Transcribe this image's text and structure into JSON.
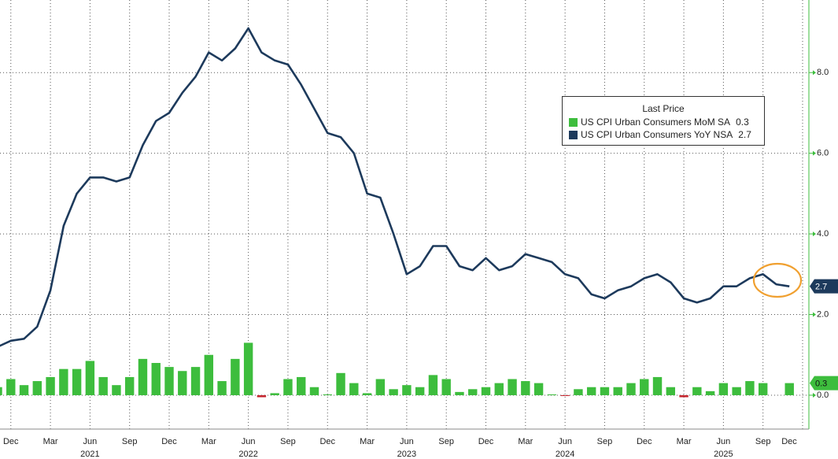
{
  "chart_data": {
    "type": "bar_line",
    "legend_title": "Last Price",
    "x": [
      "2020-11",
      "2020-12",
      "2021-01",
      "2021-02",
      "2021-03",
      "2021-04",
      "2021-05",
      "2021-06",
      "2021-07",
      "2021-08",
      "2021-09",
      "2021-10",
      "2021-11",
      "2021-12",
      "2022-01",
      "2022-02",
      "2022-03",
      "2022-04",
      "2022-05",
      "2022-06",
      "2022-07",
      "2022-08",
      "2022-09",
      "2022-10",
      "2022-11",
      "2022-12",
      "2023-01",
      "2023-02",
      "2023-03",
      "2023-04",
      "2023-05",
      "2023-06",
      "2023-07",
      "2023-08",
      "2023-09",
      "2023-10",
      "2023-11",
      "2023-12",
      "2024-01",
      "2024-02",
      "2024-03",
      "2024-04",
      "2024-05",
      "2024-06",
      "2024-07",
      "2024-08",
      "2024-09",
      "2024-10",
      "2024-11",
      "2024-12",
      "2025-01",
      "2025-02",
      "2025-03",
      "2025-04",
      "2025-05",
      "2025-06",
      "2025-07",
      "2025-08",
      "2025-09",
      "2025-10",
      "2025-11"
    ],
    "series": [
      {
        "name": "US CPI Urban Consumers MoM SA",
        "kind": "bar",
        "color": "#3dbd3d",
        "negative_color": "#c4262e",
        "last_label": "0.3",
        "values": [
          0.2,
          0.4,
          0.25,
          0.35,
          0.45,
          0.65,
          0.65,
          0.85,
          0.45,
          0.25,
          0.45,
          0.9,
          0.8,
          0.7,
          0.6,
          0.7,
          1.0,
          0.35,
          0.9,
          1.3,
          -0.05,
          0.05,
          0.4,
          0.45,
          0.2,
          0.02,
          0.55,
          0.3,
          0.05,
          0.4,
          0.15,
          0.25,
          0.2,
          0.5,
          0.4,
          0.08,
          0.15,
          0.2,
          0.3,
          0.4,
          0.35,
          0.3,
          0.02,
          -0.02,
          0.15,
          0.2,
          0.2,
          0.2,
          0.3,
          0.4,
          0.45,
          0.2,
          -0.05,
          0.2,
          0.1,
          0.3,
          0.2,
          0.35,
          0.3,
          null,
          0.3
        ]
      },
      {
        "name": "US CPI Urban Consumers YoY NSA",
        "kind": "line",
        "color": "#1d3a5c",
        "last_label": "2.7",
        "values": [
          1.2,
          1.35,
          1.4,
          1.7,
          2.6,
          4.2,
          5.0,
          5.4,
          5.4,
          5.3,
          5.4,
          6.2,
          6.8,
          7.0,
          7.5,
          7.9,
          8.5,
          8.3,
          8.6,
          9.1,
          8.5,
          8.3,
          8.2,
          7.7,
          7.1,
          6.5,
          6.4,
          6.0,
          5.0,
          4.9,
          4.0,
          3.0,
          3.2,
          3.7,
          3.7,
          3.2,
          3.1,
          3.4,
          3.1,
          3.2,
          3.5,
          3.4,
          3.3,
          3.0,
          2.9,
          2.5,
          2.4,
          2.6,
          2.7,
          2.9,
          3.0,
          2.8,
          2.4,
          2.3,
          2.4,
          2.7,
          2.7,
          2.9,
          3.0,
          2.75,
          2.7
        ]
      }
    ],
    "xlim": [
      "2020-11",
      "2025-12"
    ],
    "xticks": [
      {
        "value": "2020-12",
        "label": "Dec"
      },
      {
        "value": "2021-03",
        "label": "Mar"
      },
      {
        "value": "2021-06",
        "label": "Jun"
      },
      {
        "value": "2021-09",
        "label": "Sep"
      },
      {
        "value": "2021-12",
        "label": "Dec"
      },
      {
        "value": "2022-03",
        "label": "Mar"
      },
      {
        "value": "2022-06",
        "label": "Jun"
      },
      {
        "value": "2022-09",
        "label": "Sep"
      },
      {
        "value": "2022-12",
        "label": "Dec"
      },
      {
        "value": "2023-03",
        "label": "Mar"
      },
      {
        "value": "2023-06",
        "label": "Jun"
      },
      {
        "value": "2023-09",
        "label": "Sep"
      },
      {
        "value": "2023-12",
        "label": "Dec"
      },
      {
        "value": "2024-03",
        "label": "Mar"
      },
      {
        "value": "2024-06",
        "label": "Jun"
      },
      {
        "value": "2024-09",
        "label": "Sep"
      },
      {
        "value": "2024-12",
        "label": "Dec"
      },
      {
        "value": "2025-03",
        "label": "Mar"
      },
      {
        "value": "2025-06",
        "label": "Jun"
      },
      {
        "value": "2025-09",
        "label": "Sep"
      },
      {
        "value": "2025-12",
        "label": "Dec"
      }
    ],
    "year_labels": [
      {
        "value": "2021-06",
        "label": "2021"
      },
      {
        "value": "2022-06",
        "label": "2022"
      },
      {
        "value": "2023-06",
        "label": "2023"
      },
      {
        "value": "2024-06",
        "label": "2024"
      },
      {
        "value": "2025-06",
        "label": "2025"
      }
    ],
    "ylim": [
      -0.84,
      9.8
    ],
    "yticks": [
      {
        "value": 0,
        "label": "0.0"
      },
      {
        "value": 2,
        "label": "2.0"
      },
      {
        "value": 4,
        "label": "4.0"
      },
      {
        "value": 6,
        "label": "6.0"
      },
      {
        "value": 8,
        "label": "8.0"
      }
    ],
    "axis_color": "#3dbd3d",
    "grid": true
  }
}
